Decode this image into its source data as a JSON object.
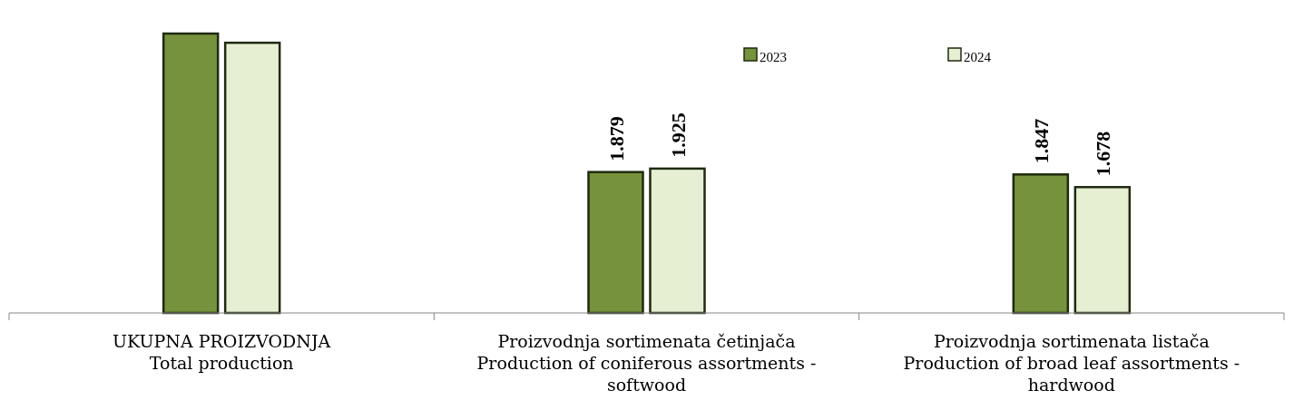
{
  "chart_data": {
    "type": "bar",
    "categories": [
      "UKUPNA PROIZVODNJA\nTotal production",
      "Proizvodnja sortimenata četinjača\nProduction of coniferous assortments -\nsoftwood",
      "Proizvodnja sortimenata listača\nProduction of broad leaf assortments -\nhardwood"
    ],
    "series": [
      {
        "name": "2023",
        "color": "#76923c",
        "values": [
          3.726,
          1.879,
          1.847
        ],
        "value_labels": [
          null,
          "1.879",
          "1.847"
        ]
      },
      {
        "name": "2024",
        "color": "#e6efd2",
        "values": [
          3.603,
          1.925,
          1.678
        ],
        "value_labels": [
          null,
          "1.925",
          "1.678"
        ]
      }
    ],
    "legend": "top right"
  }
}
